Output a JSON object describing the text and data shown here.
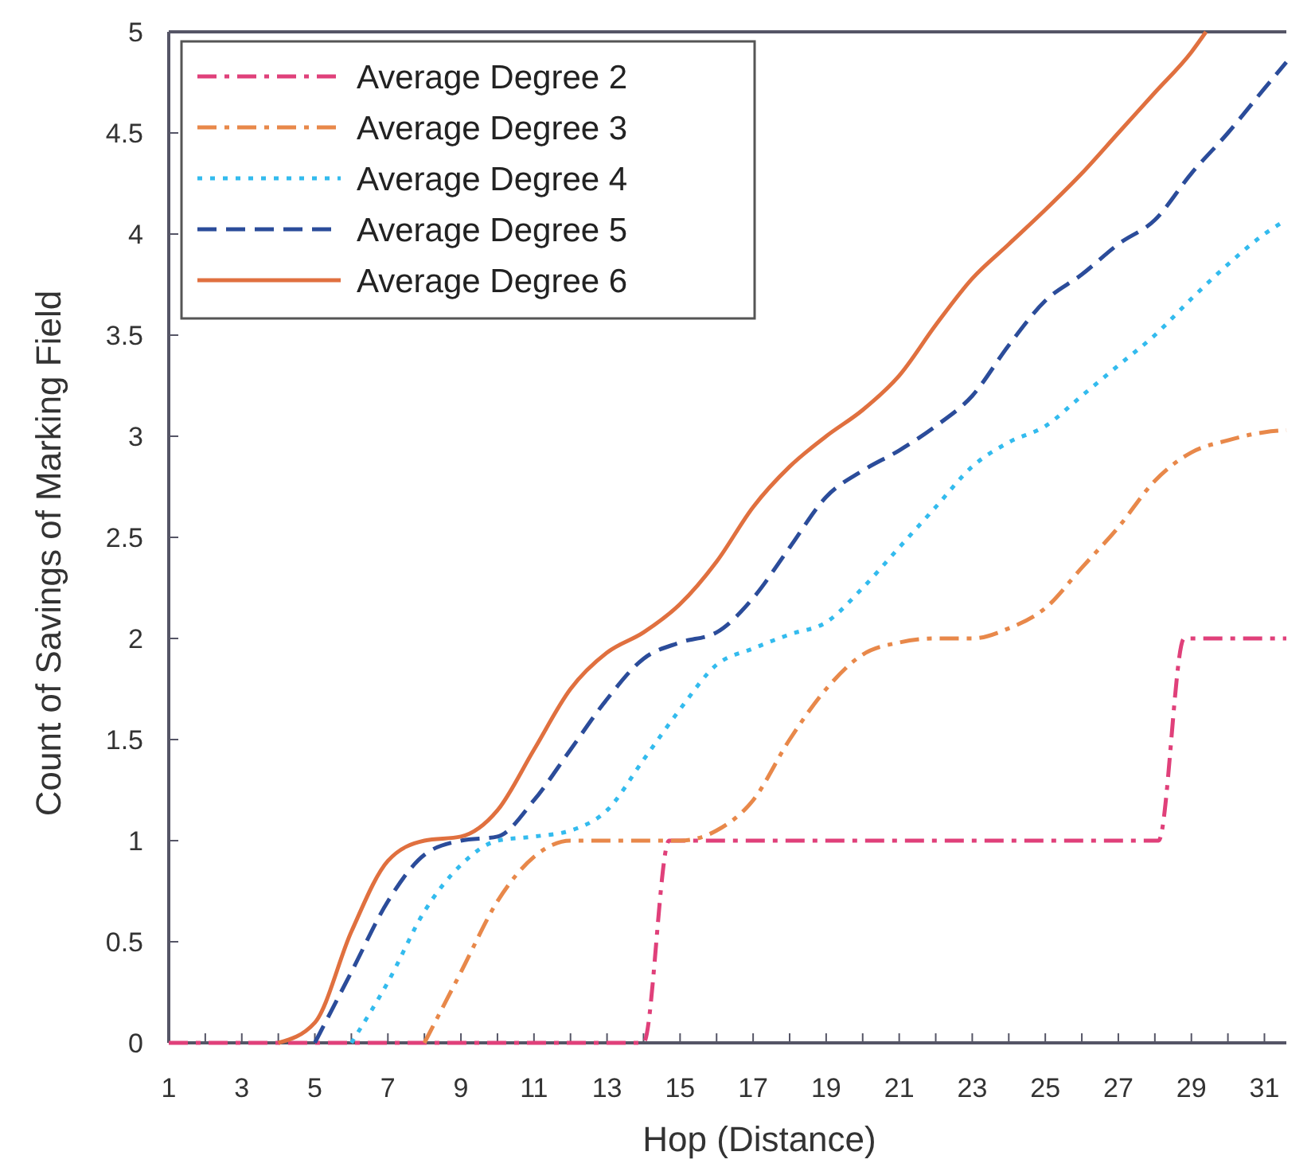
{
  "chart_data": {
    "type": "line",
    "xlabel": "Hop (Distance)",
    "ylabel": "Count of Savings of Marking Field",
    "xlim": [
      1,
      31.6
    ],
    "xticks": [
      1,
      {
        "value": 2,
        "label": null
      },
      3,
      {
        "value": 4,
        "label": null
      },
      5,
      {
        "value": 6,
        "label": null
      },
      7,
      {
        "value": 8,
        "label": null
      },
      9,
      {
        "value": 10,
        "label": null
      },
      11,
      {
        "value": 12,
        "label": null
      },
      13,
      {
        "value": 14,
        "label": null
      },
      15,
      {
        "value": 16,
        "label": null
      },
      17,
      {
        "value": 18,
        "label": null
      },
      19,
      {
        "value": 20,
        "label": null
      },
      21,
      {
        "value": 22,
        "label": null
      },
      23,
      {
        "value": 24,
        "label": null
      },
      25,
      {
        "value": 26,
        "label": null
      },
      27,
      {
        "value": 28,
        "label": null
      },
      29,
      {
        "value": 30,
        "label": null
      },
      31
    ],
    "ylim": [
      0,
      5
    ],
    "yticks": [
      0,
      0.5,
      1,
      1.5,
      2,
      2.5,
      3,
      3.5,
      4,
      4.5,
      5
    ],
    "grid": false,
    "legend": "top left",
    "marker": "none",
    "series": [
      {
        "name": "Average Degree 2",
        "color": "#e0407a",
        "line_style": "dashdot",
        "x": [
          1,
          14,
          14.7,
          28.1,
          28.8,
          31.6
        ],
        "values": [
          0,
          0,
          1,
          1,
          2,
          2
        ]
      },
      {
        "name": "Average Degree 3",
        "color": "#e8884a",
        "line_style": "dashdot",
        "x": [
          8,
          9,
          10,
          11,
          12,
          13,
          14,
          15,
          16,
          17,
          18,
          19,
          20,
          21,
          22,
          23,
          24,
          25,
          26,
          27,
          28,
          29,
          30,
          31,
          31.6
        ],
        "values": [
          0,
          0.35,
          0.7,
          0.92,
          1,
          1,
          1,
          1,
          1.05,
          1.2,
          1.5,
          1.75,
          1.92,
          1.98,
          2,
          2,
          2.05,
          2.15,
          2.35,
          2.55,
          2.78,
          2.92,
          2.98,
          3.02,
          3.03
        ]
      },
      {
        "name": "Average Degree 4",
        "color": "#33bbee",
        "line_style": "dotted",
        "x": [
          6,
          7,
          8,
          9,
          10,
          11,
          12,
          13,
          14,
          15,
          16,
          17,
          18,
          19,
          20,
          21,
          22,
          23,
          24,
          25,
          26,
          27,
          28,
          29,
          30,
          31,
          31.6
        ],
        "values": [
          0,
          0.3,
          0.65,
          0.88,
          1,
          1.02,
          1.05,
          1.15,
          1.4,
          1.65,
          1.87,
          1.95,
          2.02,
          2.08,
          2.25,
          2.45,
          2.65,
          2.85,
          2.97,
          3.05,
          3.2,
          3.35,
          3.5,
          3.68,
          3.85,
          4,
          4.07
        ]
      },
      {
        "name": "Average Degree 5",
        "color": "#2b4c9a",
        "line_style": "dashed",
        "x": [
          5,
          6,
          7,
          8,
          9,
          10,
          11,
          12,
          13,
          14,
          15,
          16,
          17,
          18,
          19,
          20,
          21,
          22,
          23,
          24,
          25,
          26,
          27,
          28,
          29,
          30,
          31,
          31.6
        ],
        "values": [
          0,
          0.35,
          0.7,
          0.93,
          1,
          1.02,
          1.2,
          1.45,
          1.7,
          1.9,
          1.98,
          2.03,
          2.2,
          2.45,
          2.7,
          2.83,
          2.93,
          3.05,
          3.2,
          3.45,
          3.67,
          3.8,
          3.95,
          4.07,
          4.3,
          4.5,
          4.72,
          4.85
        ]
      },
      {
        "name": "Average Degree 6",
        "color": "#e0703f",
        "line_style": "solid",
        "x": [
          4,
          5,
          6,
          7,
          8,
          9,
          10,
          11,
          12,
          13,
          14,
          15,
          16,
          17,
          18,
          19,
          20,
          21,
          22,
          23,
          24,
          25,
          26,
          27,
          28,
          29,
          29.4
        ],
        "values": [
          0,
          0.1,
          0.55,
          0.9,
          1,
          1.02,
          1.15,
          1.45,
          1.75,
          1.93,
          2.03,
          2.17,
          2.38,
          2.65,
          2.85,
          3,
          3.13,
          3.3,
          3.55,
          3.78,
          3.95,
          4.12,
          4.3,
          4.5,
          4.7,
          4.9,
          5
        ]
      }
    ]
  }
}
